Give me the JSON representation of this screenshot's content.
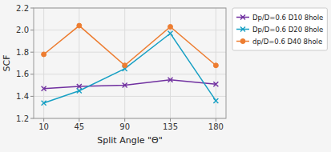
{
  "chart_data": {
    "type": "line",
    "x": [
      10,
      45,
      90,
      135,
      180
    ],
    "series": [
      {
        "name": "Dp/D=0.6 D10 8hole",
        "color": "#7030a0",
        "marker": "x",
        "values": [
          1.47,
          1.49,
          1.5,
          1.55,
          1.51
        ]
      },
      {
        "name": "Dp/D=0.6 D20 8hole",
        "color": "#17a0c4",
        "marker": "x",
        "values": [
          1.34,
          1.45,
          1.65,
          1.97,
          1.36
        ]
      },
      {
        "name": "dp/D=0.6 D40 8hole",
        "color": "#ed7d31",
        "marker": "circle",
        "values": [
          1.78,
          2.04,
          1.68,
          2.03,
          1.68
        ]
      }
    ],
    "xlabel": "Split Angle \"Θ\"",
    "ylabel": "SCF",
    "xlim": [
      0,
      190
    ],
    "ylim": [
      1.2,
      2.2
    ],
    "xticks": [
      10,
      45,
      90,
      135,
      180
    ],
    "yticks": [
      1.2,
      1.4,
      1.6,
      1.8,
      {
        "value": 2.0,
        "label": "2.0"
      },
      2.2
    ],
    "grid": true,
    "legend": "right"
  }
}
